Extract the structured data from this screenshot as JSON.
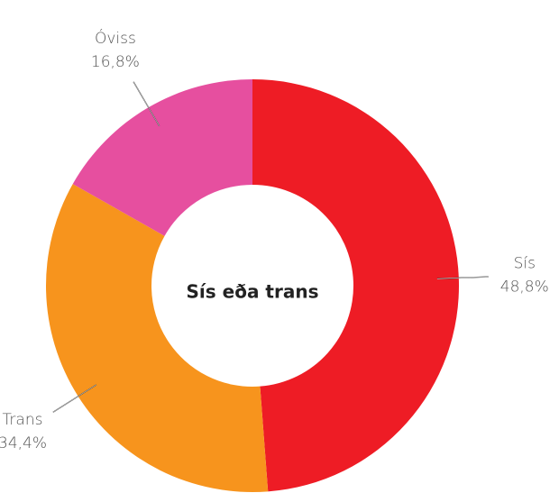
{
  "chart_data": {
    "type": "donut",
    "title": "Sís eða trans",
    "categories": [
      "Sís",
      "Trans",
      "Óviss"
    ],
    "values": [
      48.8,
      34.4,
      16.8
    ],
    "value_labels": [
      "48,8%",
      "34,4%",
      "16,8%"
    ],
    "colors": [
      "#ee1c25",
      "#f7941d",
      "#e64f9f"
    ]
  }
}
